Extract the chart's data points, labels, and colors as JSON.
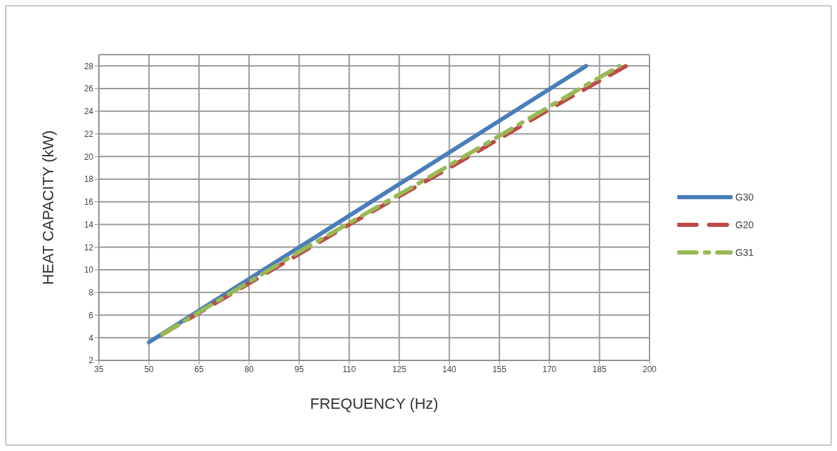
{
  "chart_data": {
    "type": "line",
    "xlabel": "FREQUENCY (Hz)",
    "ylabel": "HEAT CAPACITY (kW)",
    "xlim": [
      35,
      200
    ],
    "xticks": [
      35,
      50,
      65,
      80,
      95,
      110,
      125,
      140,
      155,
      170,
      185,
      200
    ],
    "ylim": [
      2,
      29
    ],
    "yticks": [
      2,
      4,
      6,
      8,
      10,
      12,
      14,
      16,
      18,
      20,
      22,
      24,
      26,
      28
    ],
    "grid": true,
    "legend": "right",
    "marker": "none",
    "series": [
      {
        "name": "G30",
        "color": "#4a7ebb",
        "line_style": "solid",
        "x": [
          50,
          181
        ],
        "values": [
          3.6,
          28
        ]
      },
      {
        "name": "G20",
        "color": "#be4b48",
        "line_style": "dashed",
        "x": [
          54,
          110,
          140,
          176,
          193
        ],
        "values": [
          4.3,
          14,
          19,
          25.2,
          28
        ]
      },
      {
        "name": "G31",
        "color": "#98b954",
        "line_style": "dashdot",
        "x": [
          54,
          95,
          130,
          178,
          191
        ],
        "values": [
          4.3,
          11.6,
          17.5,
          25.8,
          28
        ]
      }
    ]
  }
}
